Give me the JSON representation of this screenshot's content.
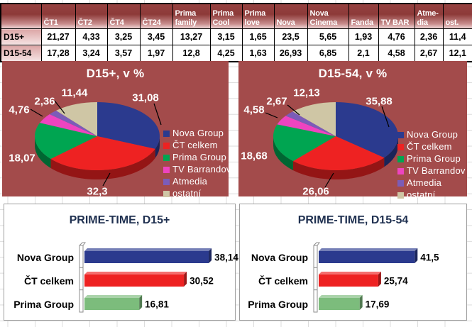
{
  "table": {
    "columns": [
      "",
      "ČT1",
      "ČT2",
      "ČT4",
      "ČT24",
      "Prima family",
      "Prima Cool",
      "Prima love",
      "Nova",
      "Nova Cinema",
      "Fanda",
      "TV BAR",
      "Atme-dia",
      "ost."
    ],
    "rows": [
      {
        "label": "D15+",
        "values": [
          "21,27",
          "4,33",
          "3,25",
          "3,45",
          "13,27",
          "3,15",
          "1,65",
          "23,5",
          "5,65",
          "1,93",
          "4,76",
          "2,36",
          "11,4"
        ]
      },
      {
        "label": "D15-54",
        "values": [
          "17,28",
          "3,24",
          "3,57",
          "1,97",
          "12,8",
          "4,25",
          "1,63",
          "26,93",
          "6,85",
          "2,1",
          "4,58",
          "2,67",
          "12,1"
        ]
      }
    ]
  },
  "legend": {
    "items": [
      {
        "label": "Nova Group",
        "color": "#2b3a8e"
      },
      {
        "label": "ČT celkem",
        "color": "#ee2222"
      },
      {
        "label": "Prima Group",
        "color": "#00a551"
      },
      {
        "label": "TV Barrandov",
        "color": "#ee44c0"
      },
      {
        "label": "Atmedia",
        "color": "#7b5cb8"
      },
      {
        "label": "ostatní",
        "color": "#cfc6a5"
      }
    ]
  },
  "colors": {
    "chart_background": "#a34b4b",
    "bar_title_text": "#1f3050",
    "table_header_dark": "#8d3a39",
    "table_header_light": "#f0d6d6",
    "bar_green": "#7cbc7c"
  },
  "chart_data": [
    {
      "type": "pie",
      "style": "3d",
      "title": "D15+, v %",
      "background": "#a34b4b",
      "legend_position": "right",
      "labels": [
        "Nova Group",
        "ČT celkem",
        "Prima Group",
        "TV Barrandov",
        "Atmedia",
        "ostatní"
      ],
      "values": [
        31.08,
        32.3,
        18.07,
        4.76,
        2.36,
        11.44
      ],
      "display_values": [
        "31,08",
        "32,3",
        "18,07",
        "4,76",
        "2,36",
        "11,44"
      ],
      "colors": [
        "#2b3a8e",
        "#ee2222",
        "#00a551",
        "#ee44c0",
        "#7b5cb8",
        "#cfc6a5"
      ],
      "unit": "%"
    },
    {
      "type": "pie",
      "style": "3d",
      "title": "D15-54, v %",
      "background": "#a34b4b",
      "legend_position": "right",
      "labels": [
        "Nova Group",
        "ČT celkem",
        "Prima Group",
        "TV Barrandov",
        "Atmedia",
        "ostatní"
      ],
      "values": [
        35.88,
        26.06,
        18.68,
        4.58,
        2.67,
        12.13
      ],
      "display_values": [
        "35,88",
        "26,06",
        "18,68",
        "4,58",
        "2,67",
        "12,13"
      ],
      "colors": [
        "#2b3a8e",
        "#ee2222",
        "#00a551",
        "#ee44c0",
        "#7b5cb8",
        "#cfc6a5"
      ],
      "unit": "%"
    },
    {
      "type": "bar",
      "style": "3d",
      "orientation": "horizontal",
      "title": "PRIME-TIME, D15+",
      "categories": [
        "Nova Group",
        "ČT celkem",
        "Prima Group"
      ],
      "values": [
        38.14,
        30.52,
        16.81
      ],
      "display_values": [
        "38,14",
        "30,52",
        "16,81"
      ],
      "colors": [
        "#2b3a8e",
        "#ee2222",
        "#7cbc7c"
      ],
      "unit": "%"
    },
    {
      "type": "bar",
      "style": "3d",
      "orientation": "horizontal",
      "title": "PRIME-TIME, D15-54",
      "categories": [
        "Nova Group",
        "ČT celkem",
        "Prima Group"
      ],
      "values": [
        41.5,
        25.74,
        17.69
      ],
      "display_values": [
        "41,5",
        "25,74",
        "17,69"
      ],
      "colors": [
        "#2b3a8e",
        "#ee2222",
        "#7cbc7c"
      ],
      "unit": "%"
    }
  ]
}
